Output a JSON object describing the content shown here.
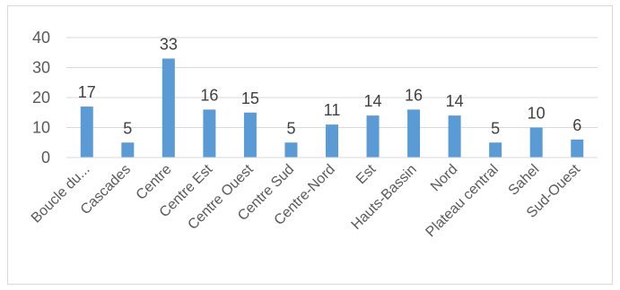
{
  "chart_data": {
    "type": "bar",
    "title": "",
    "xlabel": "",
    "ylabel": "",
    "categories": [
      "Boucle du...",
      "Cascades",
      "Centre",
      "Centre Est",
      "Centre Ouest",
      "Centre Sud",
      "Centre-Nord",
      "Est",
      "Hauts-Bassin",
      "Nord",
      "Plateau central",
      "Sahel",
      "Sud-Ouest"
    ],
    "values": [
      17,
      5,
      33,
      16,
      15,
      5,
      11,
      14,
      16,
      14,
      5,
      10,
      6
    ],
    "ylim": [
      0,
      40
    ],
    "yticks": [
      0,
      10,
      20,
      30,
      40
    ],
    "grid": true,
    "legend": "none",
    "bar_color": "#5b9bd5",
    "data_labels": true
  }
}
